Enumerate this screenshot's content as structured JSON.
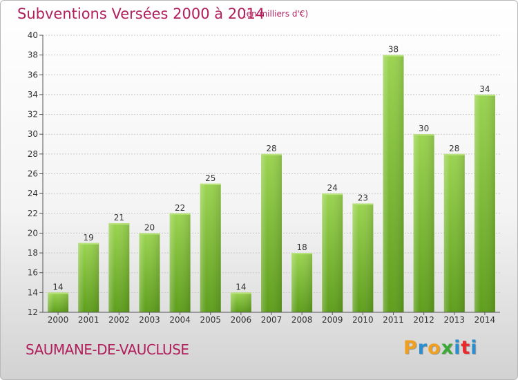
{
  "title": "Subventions Versées 2000 à 2014",
  "unit_note": "(en milliers d'€)",
  "commune": "SAUMANE-DE-VAUCLUSE",
  "logo": {
    "letters": [
      "P",
      "r",
      "o",
      "x",
      "i",
      "t",
      "i"
    ],
    "colors": [
      "#f0a020",
      "#2a8fd0",
      "#f0a020",
      "#3aaa35",
      "#2a8fd0",
      "#e8282a",
      "#2a8fd0"
    ]
  },
  "chart_data": {
    "type": "bar",
    "title": "Subventions Versées 2000 à 2014",
    "subtitle": "(en milliers d'€)",
    "categories": [
      "2000",
      "2001",
      "2002",
      "2003",
      "2004",
      "2005",
      "2006",
      "2007",
      "2008",
      "2009",
      "2010",
      "2011",
      "2012",
      "2013",
      "2014"
    ],
    "values": [
      14,
      19,
      21,
      20,
      22,
      25,
      14,
      28,
      18,
      24,
      23,
      38,
      30,
      28,
      34
    ],
    "ylim": [
      12,
      40
    ],
    "yticks": [
      12,
      14,
      16,
      18,
      20,
      22,
      24,
      26,
      28,
      30,
      32,
      34,
      36,
      38,
      40
    ],
    "grid": true,
    "bar_color": "#7ab83a",
    "xlabel": "",
    "ylabel": ""
  }
}
